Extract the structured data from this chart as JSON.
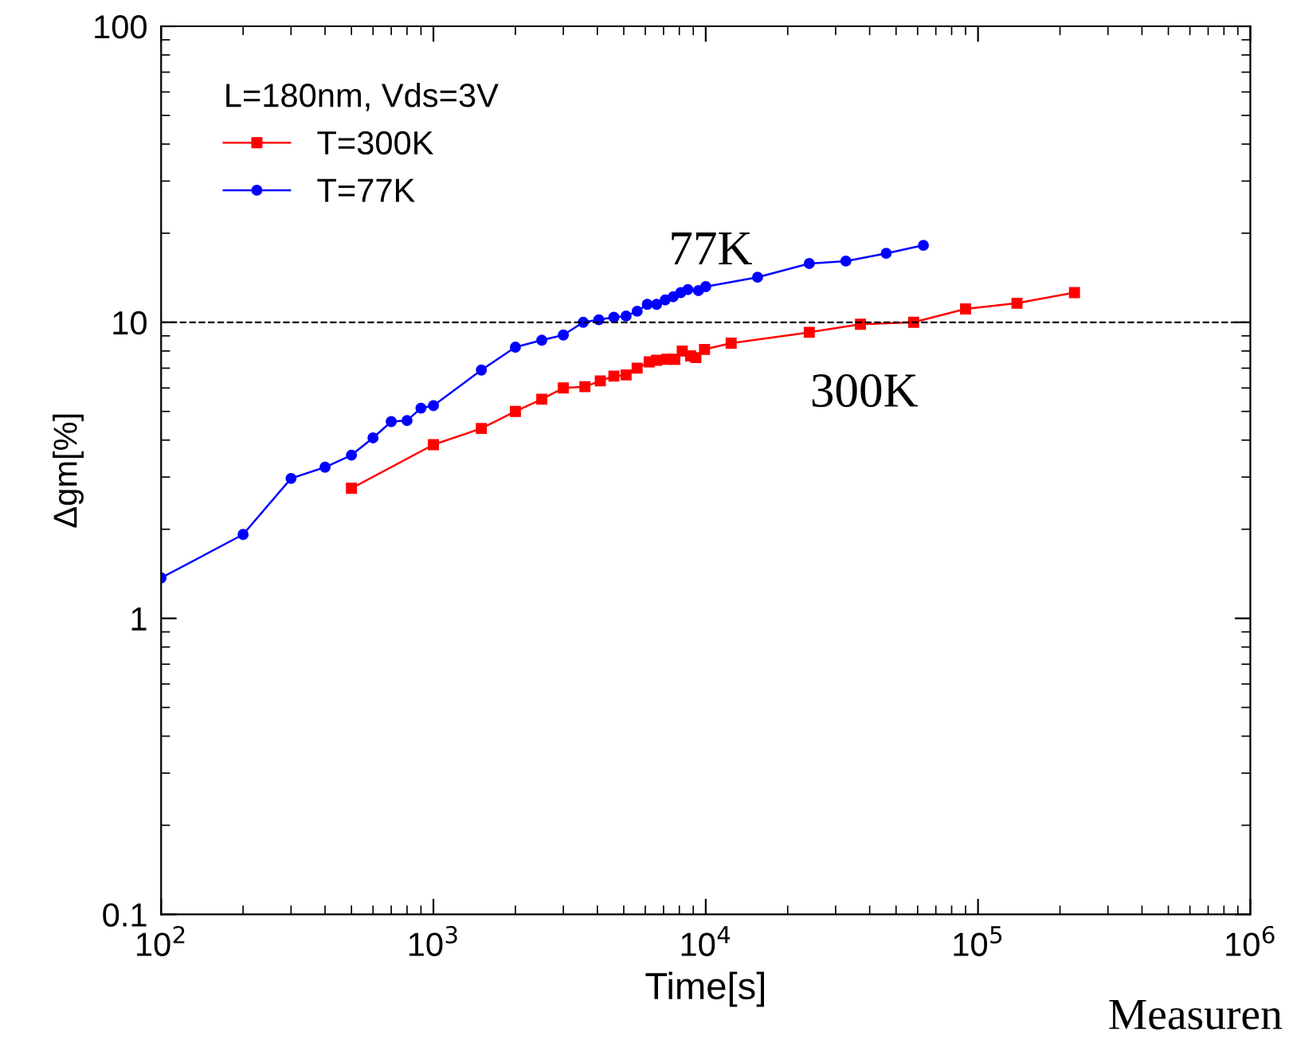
{
  "chart_data": {
    "type": "line",
    "xlabel": "Time[s]",
    "ylabel": "Δgm[%]",
    "legend_title": "L=180nm, Vds=3V",
    "log": "xy",
    "legend": "top left",
    "grid": false,
    "xlim": [
      100,
      1000000
    ],
    "ylim": [
      0.1,
      100
    ],
    "xticks": [
      {
        "value": 100,
        "label": "10$^{2}$"
      },
      {
        "value": 1000,
        "label": "10$^{3}$"
      },
      {
        "value": 10000,
        "label": "10$^{4}$"
      },
      {
        "value": 100000,
        "label": "10$^{5}$"
      },
      {
        "value": 1000000,
        "label": "10$^{6}$"
      }
    ],
    "yticks": [
      0.1,
      1,
      10,
      100
    ],
    "series": [
      {
        "name": "T=300K",
        "color": "#ff0000",
        "marker": "square",
        "x": [
          500,
          1000,
          1500,
          2000,
          2500,
          3000,
          3600,
          4100,
          4600,
          5100,
          5600,
          6200,
          6600,
          7200,
          7700,
          8200,
          8800,
          9200,
          9900,
          12400,
          24000,
          37000,
          58000,
          90000,
          139000,
          226000
        ],
        "values": [
          2.75,
          3.86,
          4.38,
          5.0,
          5.5,
          6.0,
          6.06,
          6.34,
          6.58,
          6.64,
          7.0,
          7.35,
          7.44,
          7.5,
          7.5,
          8.0,
          7.7,
          7.6,
          8.1,
          8.5,
          9.25,
          9.85,
          10.0,
          11.1,
          11.6,
          12.6
        ]
      },
      {
        "name": "T=77K",
        "color": "#0000ff",
        "marker": "circle",
        "x": [
          100,
          200,
          300,
          400,
          500,
          600,
          700,
          800,
          900,
          1000,
          1500,
          2000,
          2500,
          3000,
          3550,
          4050,
          4600,
          5100,
          5600,
          6100,
          6600,
          7100,
          7600,
          8100,
          8600,
          9400,
          10000,
          15500,
          24000,
          32700,
          46000,
          63000
        ],
        "values": [
          1.37,
          1.92,
          2.97,
          3.24,
          3.56,
          4.07,
          4.62,
          4.66,
          5.13,
          5.23,
          6.9,
          8.24,
          8.7,
          9.06,
          10.0,
          10.2,
          10.4,
          10.5,
          10.9,
          11.5,
          11.5,
          11.9,
          12.2,
          12.6,
          12.9,
          12.8,
          13.2,
          14.2,
          15.8,
          16.1,
          17.1,
          18.2
        ]
      }
    ],
    "ref_lines": [
      {
        "axis": "y",
        "value": 10,
        "label": null,
        "color": "#000000",
        "line_style": "dashed"
      }
    ],
    "annotations": [
      "77K",
      "300K",
      "Measuren"
    ]
  }
}
